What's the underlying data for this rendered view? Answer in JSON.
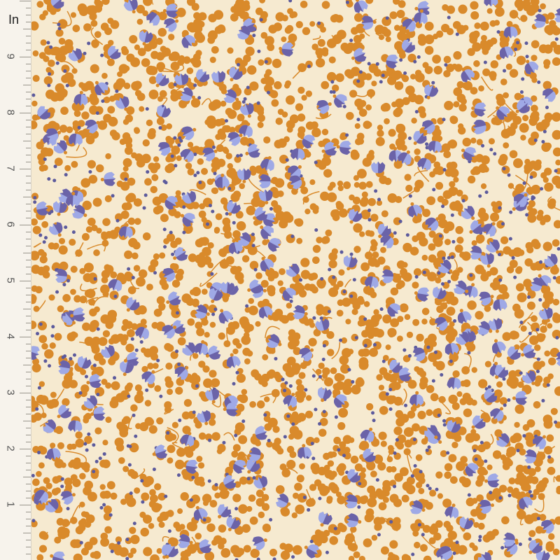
{
  "ruler": {
    "unit": "In",
    "labels": [
      "9",
      "8",
      "7",
      "6",
      "5",
      "4",
      "3",
      "2",
      "1"
    ]
  },
  "colors": {
    "background": "#f6ead0",
    "orange": "#d98a2b",
    "light_blue": "#9fa9e6",
    "dark_purple": "#6b63a8",
    "dot": "#5c5a9c",
    "ruler": "#f7f3ec"
  },
  "pattern": {
    "motifs": [
      "orange-berry-leaves",
      "blue-fan-flowers",
      "purple-dots",
      "vine-stems"
    ]
  }
}
